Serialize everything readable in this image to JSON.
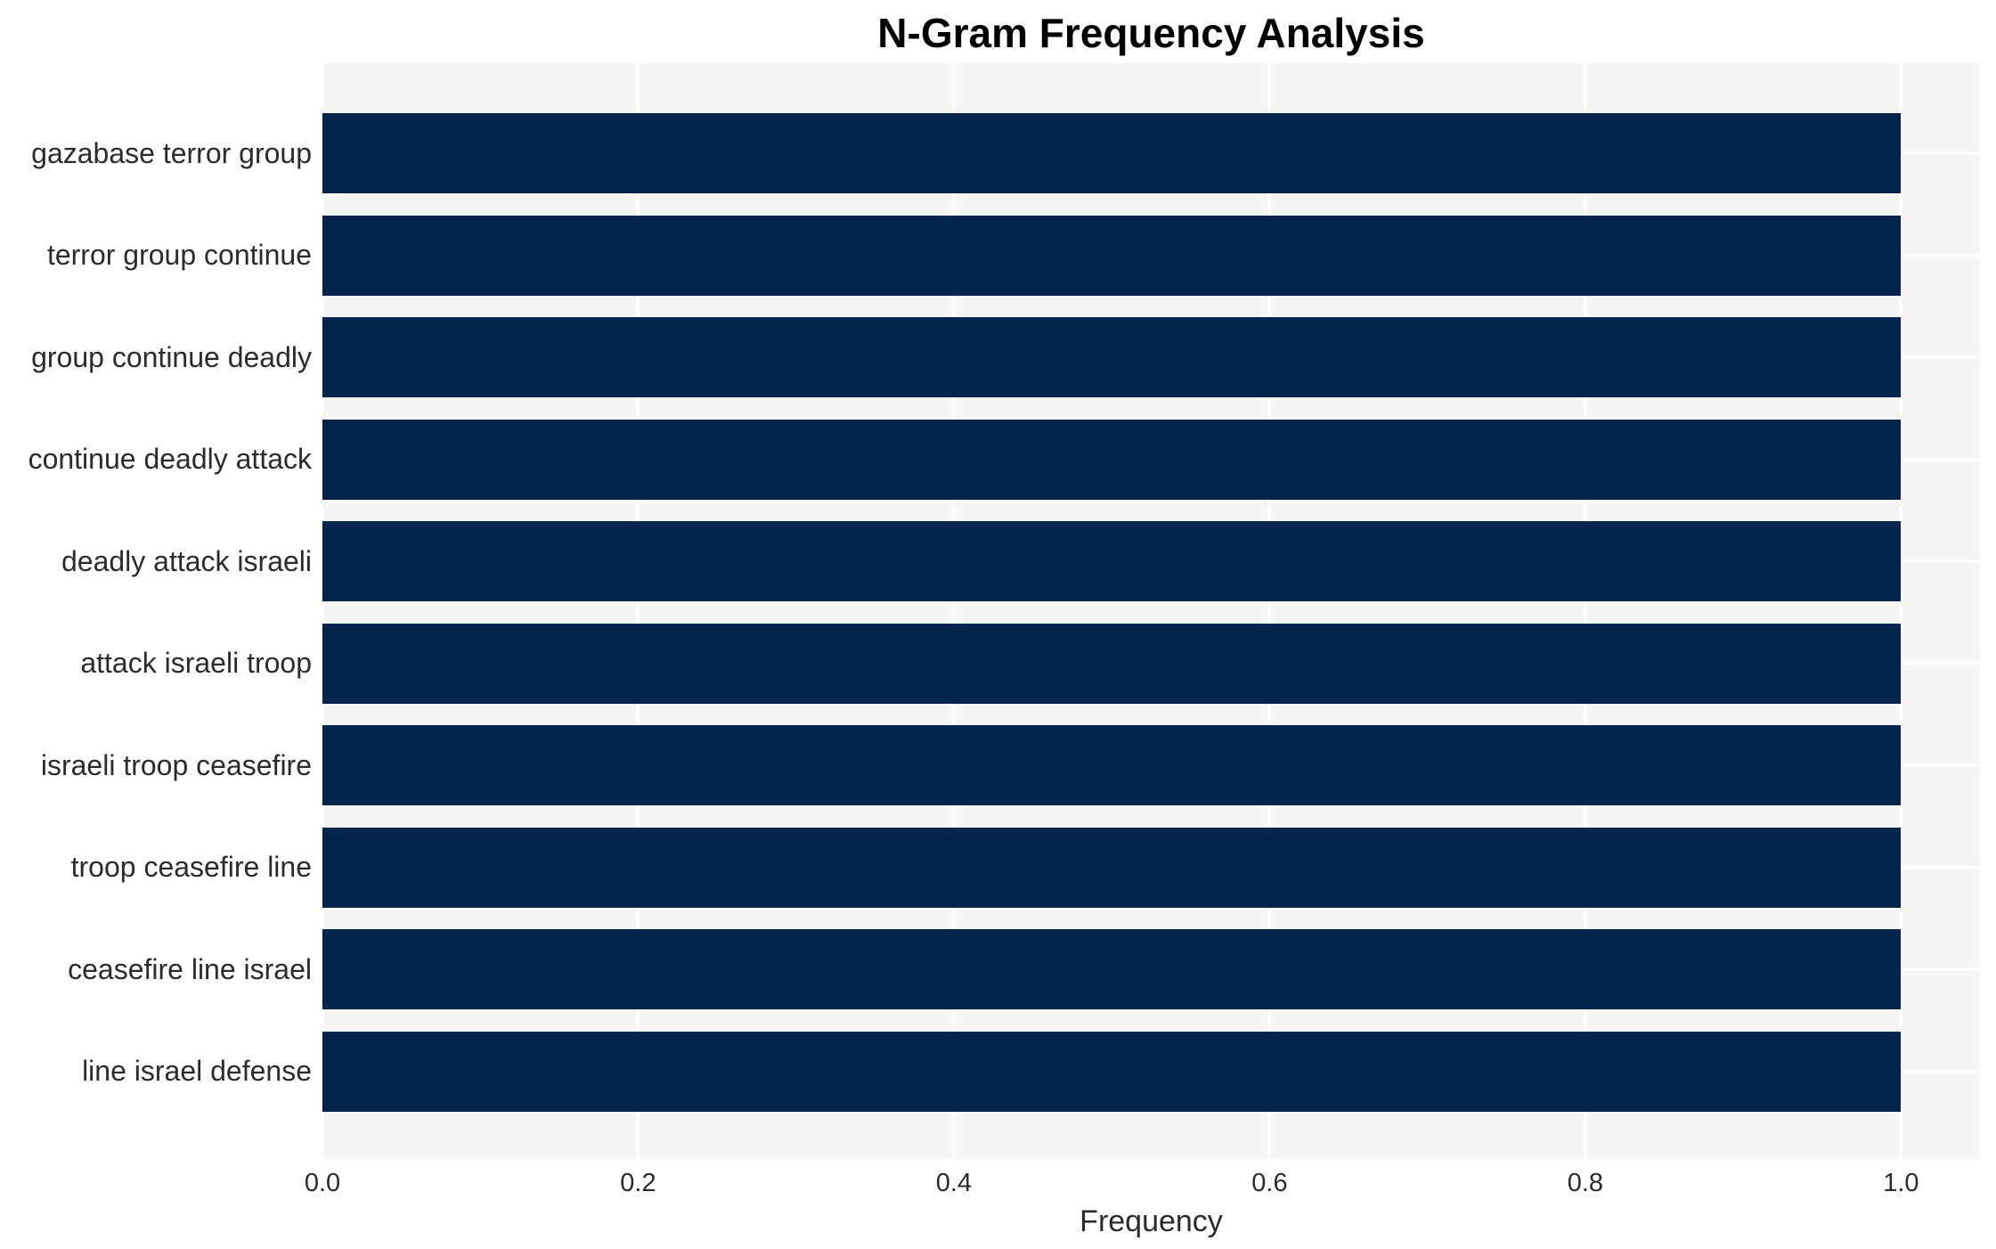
{
  "chart_data": {
    "type": "bar",
    "orientation": "horizontal",
    "title": "N-Gram Frequency Analysis",
    "xlabel": "Frequency",
    "ylabel": "",
    "categories": [
      "gazabase terror group",
      "terror group continue",
      "group continue deadly",
      "continue deadly attack",
      "deadly attack israeli",
      "attack israeli troop",
      "israeli troop ceasefire",
      "troop ceasefire line",
      "ceasefire line israel",
      "line israel defense"
    ],
    "values": [
      1.0,
      1.0,
      1.0,
      1.0,
      1.0,
      1.0,
      1.0,
      1.0,
      1.0,
      1.0
    ],
    "x_ticks": [
      "0.0",
      "0.2",
      "0.4",
      "0.6",
      "0.8",
      "1.0"
    ],
    "x_tick_values": [
      0.0,
      0.2,
      0.4,
      0.6,
      0.8,
      1.0
    ],
    "xlim": [
      0,
      1.05
    ],
    "grid": true,
    "legend": "none",
    "colors": {
      "bar": "#02254e",
      "plot_background": "#f5f5f6",
      "gridline": "#ffffff",
      "tick_text": "#2b2b2b",
      "title_text": "#000000"
    }
  }
}
